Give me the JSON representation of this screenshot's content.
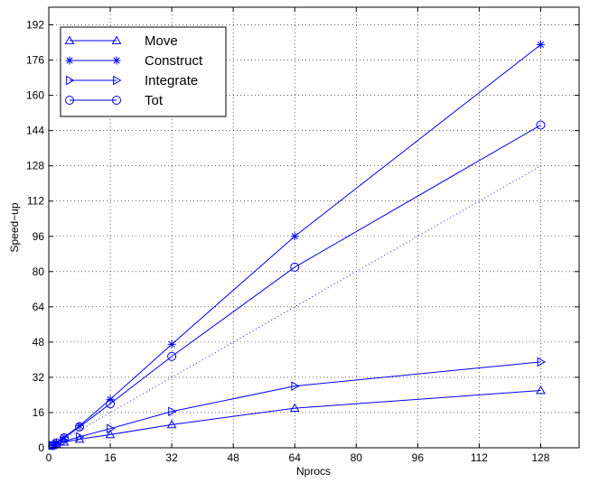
{
  "chart_data": {
    "type": "line",
    "xlabel": "Nprocs",
    "ylabel": "Speed−up",
    "xlim": [
      0,
      138
    ],
    "ylim": [
      0,
      200
    ],
    "xticks": [
      0,
      16,
      32,
      48,
      64,
      80,
      96,
      112,
      128
    ],
    "yticks": [
      0,
      16,
      32,
      48,
      64,
      80,
      96,
      112,
      128,
      144,
      160,
      176,
      192
    ],
    "grid": true,
    "legend_position": "top-left",
    "line_color": "#0000ff",
    "series": [
      {
        "name": "Move",
        "marker": "triangle-up",
        "x": [
          1,
          2,
          4,
          8,
          16,
          32,
          64,
          128
        ],
        "values": [
          1,
          1.6,
          2.6,
          3.9,
          6,
          10.5,
          18,
          26
        ]
      },
      {
        "name": "Construct",
        "marker": "asterisk",
        "x": [
          1,
          2,
          4,
          8,
          16,
          32,
          64,
          128
        ],
        "values": [
          1,
          2.3,
          4.8,
          10,
          22,
          47,
          96,
          183
        ]
      },
      {
        "name": "Integrate",
        "marker": "triangle-right",
        "x": [
          1,
          2,
          4,
          8,
          16,
          32,
          64,
          128
        ],
        "values": [
          1,
          1.8,
          3,
          5,
          8.7,
          16.5,
          28,
          39
        ]
      },
      {
        "name": "Tot",
        "marker": "circle",
        "x": [
          1,
          2,
          4,
          8,
          16,
          32,
          64,
          128
        ],
        "values": [
          1,
          2.2,
          4.5,
          9.5,
          20,
          41.5,
          82,
          146.5
        ]
      }
    ],
    "reference_line": {
      "style": "dotted",
      "x": [
        0,
        128
      ],
      "values": [
        0,
        128
      ]
    }
  }
}
